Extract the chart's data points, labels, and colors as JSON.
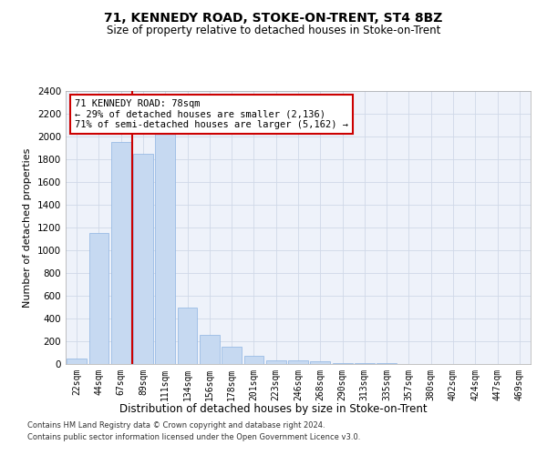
{
  "title": "71, KENNEDY ROAD, STOKE-ON-TRENT, ST4 8BZ",
  "subtitle": "Size of property relative to detached houses in Stoke-on-Trent",
  "xlabel": "Distribution of detached houses by size in Stoke-on-Trent",
  "ylabel": "Number of detached properties",
  "categories": [
    "22sqm",
    "44sqm",
    "67sqm",
    "89sqm",
    "111sqm",
    "134sqm",
    "156sqm",
    "178sqm",
    "201sqm",
    "223sqm",
    "246sqm",
    "268sqm",
    "290sqm",
    "313sqm",
    "335sqm",
    "357sqm",
    "380sqm",
    "402sqm",
    "424sqm",
    "447sqm",
    "469sqm"
  ],
  "values": [
    50,
    1150,
    1950,
    1850,
    2100,
    500,
    260,
    150,
    70,
    35,
    35,
    25,
    10,
    10,
    5,
    2,
    2,
    2,
    2,
    2,
    2
  ],
  "bar_color": "#c6d9f1",
  "bar_edgecolor": "#8db4e2",
  "vline_index": 3,
  "vline_color": "#cc0000",
  "ylim": [
    0,
    2400
  ],
  "yticks": [
    0,
    200,
    400,
    600,
    800,
    1000,
    1200,
    1400,
    1600,
    1800,
    2000,
    2200,
    2400
  ],
  "annotation_text": "71 KENNEDY ROAD: 78sqm\n← 29% of detached houses are smaller (2,136)\n71% of semi-detached houses are larger (5,162) →",
  "annotation_box_color": "#cc0000",
  "footer_line1": "Contains HM Land Registry data © Crown copyright and database right 2024.",
  "footer_line2": "Contains public sector information licensed under the Open Government Licence v3.0.",
  "grid_color": "#d0d8e8",
  "background_color": "#eef2fa",
  "fig_width": 6.0,
  "fig_height": 5.0,
  "fig_dpi": 100
}
